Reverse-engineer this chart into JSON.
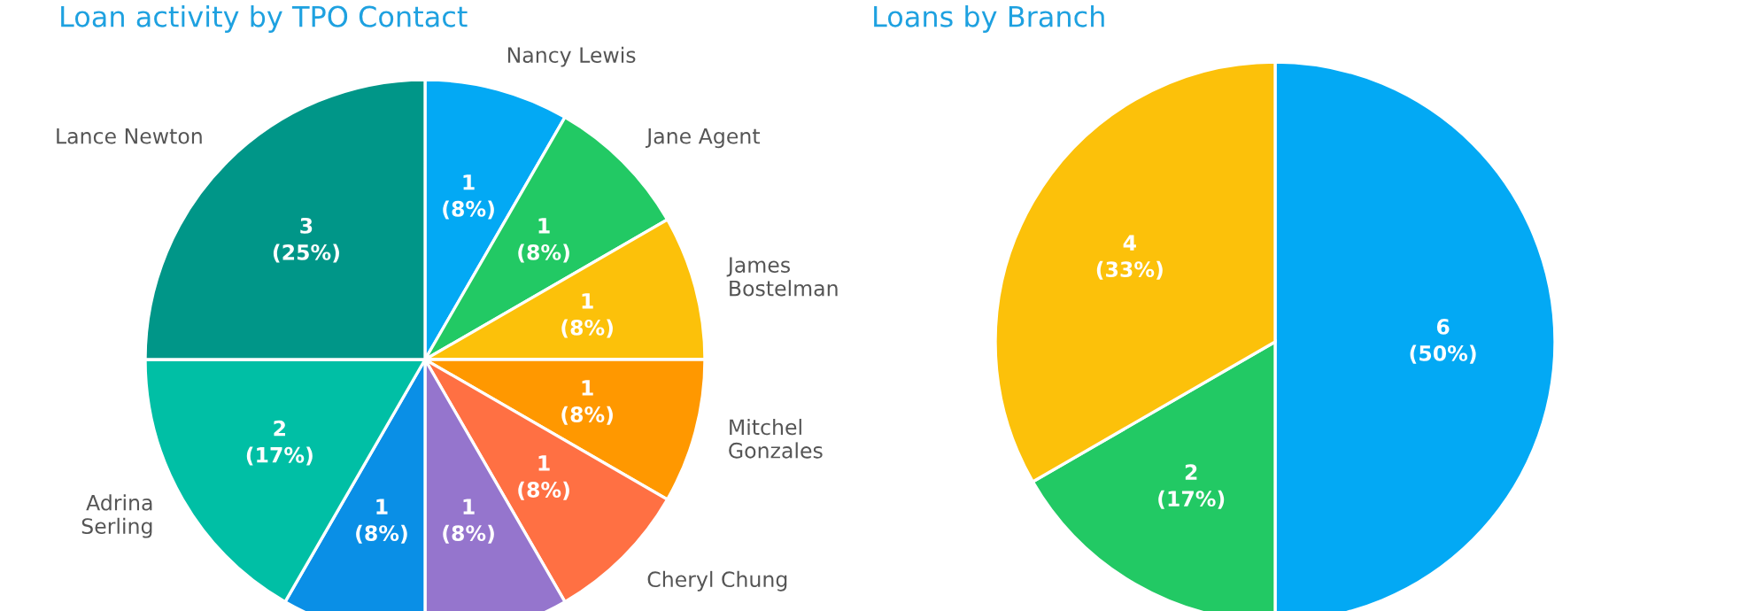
{
  "chart_data": [
    {
      "type": "pie",
      "title": "Loan activity by TPO Contact",
      "categories": [
        "Nancy Lewis",
        "Jane Agent",
        "James\nBostelman",
        "Mitchel\nGonzales",
        "Cheryl Chung",
        null,
        null,
        "Adrina\nSerling",
        "Lance Newton"
      ],
      "values": [
        1,
        1,
        1,
        1,
        1,
        1,
        1,
        2,
        3
      ],
      "colors": [
        "#03a9f4",
        "#22c964",
        "#fcc10a",
        "#ff9800",
        "#ff7043",
        "#9575cd",
        "#0a8fe6",
        "#00bfa5",
        "#009688"
      ],
      "value_labels": [
        "1\n(8%)",
        "1\n(8%)",
        "1\n(8%)",
        "1\n(8%)",
        "1\n(8%)",
        "1\n(8%)",
        "1\n(8%)",
        "2\n(17%)",
        "3\n(25%)"
      ]
    },
    {
      "type": "pie",
      "title": "Loans by Branch",
      "categories": [
        null,
        null,
        null
      ],
      "values": [
        6,
        2,
        4
      ],
      "colors": [
        "#03a9f4",
        "#22c964",
        "#fcc10a"
      ],
      "value_labels": [
        "6\n(50%)",
        "2\n(17%)",
        "4\n(33%)"
      ]
    }
  ]
}
